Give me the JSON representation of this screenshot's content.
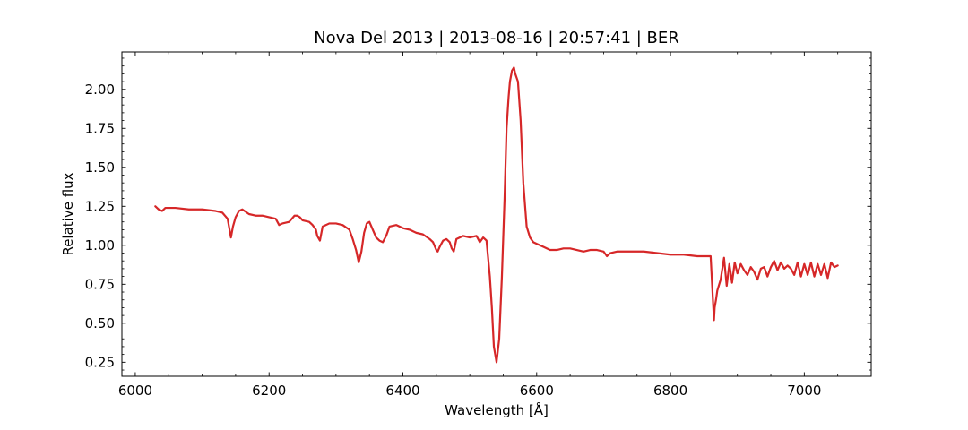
{
  "chart_data": {
    "type": "line",
    "title": "Nova Del 2013 | 2013-08-16 | 20:57:41 | BER",
    "xlabel": "Wavelength [Å]",
    "ylabel": "Relative flux",
    "xlim": [
      5980,
      7100
    ],
    "ylim": [
      0.16,
      2.24
    ],
    "xticks": [
      6000,
      6200,
      6400,
      6600,
      6800,
      7000
    ],
    "yticks": [
      0.25,
      0.5,
      0.75,
      1.0,
      1.25,
      1.5,
      1.75,
      2.0
    ],
    "x_minor_step": 50,
    "y_minor_step": 0.05,
    "grid": false,
    "legend": "none",
    "series": [
      {
        "color": "#d62728",
        "x": [
          6030,
          6035,
          6040,
          6045,
          6050,
          6060,
          6080,
          6100,
          6120,
          6130,
          6138,
          6143,
          6146,
          6150,
          6155,
          6160,
          6170,
          6180,
          6190,
          6200,
          6210,
          6215,
          6220,
          6230,
          6238,
          6242,
          6246,
          6250,
          6260,
          6265,
          6270,
          6272,
          6276,
          6280,
          6290,
          6300,
          6310,
          6320,
          6325,
          6330,
          6334,
          6338,
          6342,
          6346,
          6350,
          6355,
          6360,
          6365,
          6370,
          6375,
          6380,
          6390,
          6400,
          6410,
          6420,
          6430,
          6440,
          6445,
          6450,
          6452,
          6455,
          6460,
          6465,
          6470,
          6473,
          6476,
          6480,
          6485,
          6490,
          6500,
          6510,
          6515,
          6520,
          6525,
          6530,
          6533,
          6536,
          6540,
          6544,
          6548,
          6552,
          6555,
          6558,
          6560,
          6563,
          6566,
          6568,
          6572,
          6576,
          6580,
          6585,
          6590,
          6595,
          6600,
          6610,
          6620,
          6630,
          6640,
          6650,
          6660,
          6670,
          6680,
          6690,
          6700,
          6705,
          6710,
          6720,
          6740,
          6760,
          6780,
          6800,
          6820,
          6840,
          6860,
          6865,
          6866,
          6868,
          6870,
          6875,
          6880,
          6884,
          6888,
          6892,
          6896,
          6900,
          6905,
          6910,
          6915,
          6920,
          6925,
          6930,
          6935,
          6940,
          6945,
          6950,
          6955,
          6960,
          6965,
          6970,
          6975,
          6980,
          6985,
          6990,
          6995,
          7000,
          7005,
          7010,
          7015,
          7020,
          7025,
          7030,
          7035,
          7040,
          7045,
          7050
        ],
        "y": [
          1.25,
          1.23,
          1.22,
          1.24,
          1.24,
          1.24,
          1.23,
          1.23,
          1.22,
          1.21,
          1.17,
          1.05,
          1.12,
          1.18,
          1.22,
          1.23,
          1.2,
          1.19,
          1.19,
          1.18,
          1.17,
          1.13,
          1.14,
          1.15,
          1.19,
          1.19,
          1.18,
          1.16,
          1.15,
          1.13,
          1.1,
          1.06,
          1.03,
          1.12,
          1.14,
          1.14,
          1.13,
          1.1,
          1.04,
          0.97,
          0.89,
          0.96,
          1.08,
          1.14,
          1.15,
          1.1,
          1.05,
          1.03,
          1.02,
          1.06,
          1.12,
          1.13,
          1.11,
          1.1,
          1.08,
          1.07,
          1.04,
          1.02,
          0.97,
          0.96,
          0.99,
          1.03,
          1.04,
          1.02,
          0.98,
          0.96,
          1.04,
          1.05,
          1.06,
          1.05,
          1.06,
          1.02,
          1.05,
          1.03,
          0.8,
          0.6,
          0.35,
          0.25,
          0.4,
          0.8,
          1.3,
          1.75,
          1.95,
          2.05,
          2.12,
          2.14,
          2.1,
          2.05,
          1.8,
          1.4,
          1.12,
          1.05,
          1.02,
          1.01,
          0.99,
          0.97,
          0.97,
          0.98,
          0.98,
          0.97,
          0.96,
          0.97,
          0.97,
          0.96,
          0.93,
          0.95,
          0.96,
          0.96,
          0.96,
          0.95,
          0.94,
          0.94,
          0.93,
          0.93,
          0.52,
          0.6,
          0.65,
          0.71,
          0.78,
          0.92,
          0.74,
          0.88,
          0.76,
          0.89,
          0.82,
          0.88,
          0.84,
          0.81,
          0.86,
          0.83,
          0.78,
          0.85,
          0.86,
          0.8,
          0.86,
          0.9,
          0.84,
          0.89,
          0.85,
          0.87,
          0.85,
          0.81,
          0.89,
          0.8,
          0.88,
          0.81,
          0.89,
          0.8,
          0.88,
          0.81,
          0.88,
          0.79,
          0.89,
          0.86,
          0.87
        ]
      }
    ]
  }
}
